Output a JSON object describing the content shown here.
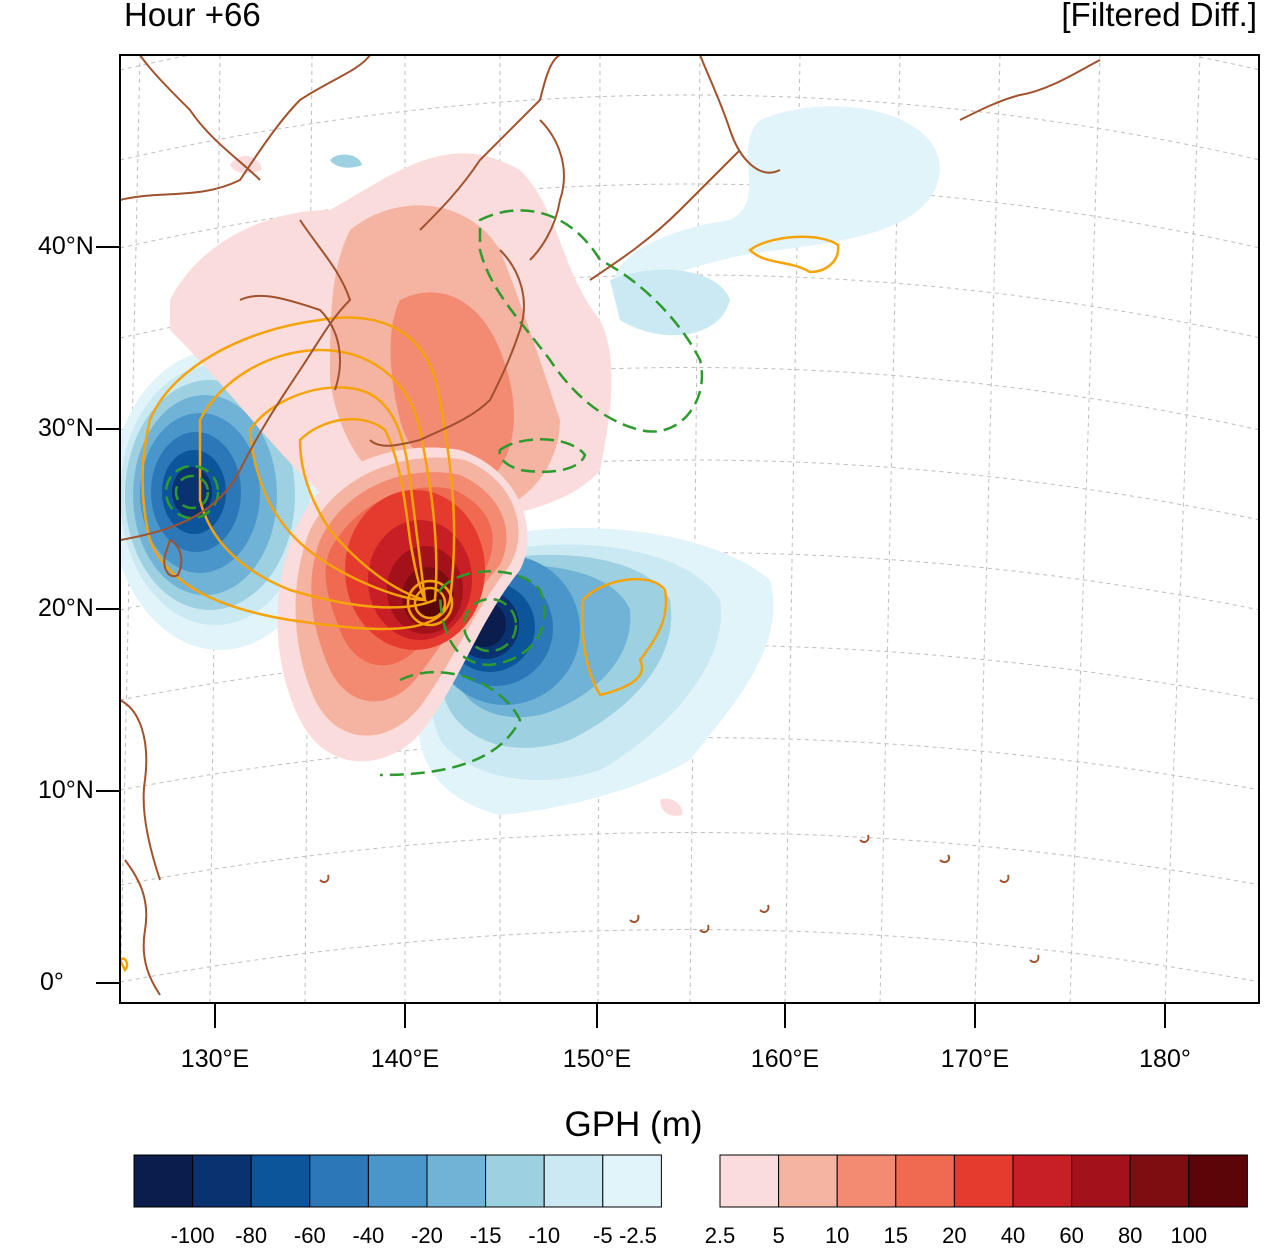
{
  "header": {
    "title_left": "Hour +66",
    "title_right": "[Filtered Diff.]"
  },
  "axes": {
    "lat_labels": [
      "40°N",
      "30°N",
      "20°N",
      "10°N",
      "0°"
    ],
    "lon_labels": [
      "130°E",
      "140°E",
      "150°E",
      "160°E",
      "170°E",
      "180°"
    ]
  },
  "colorbar": {
    "title": "GPH (m)",
    "negative_ticks": [
      "-100",
      "-80",
      "-60",
      "-40",
      "-20",
      "-15",
      "-10",
      "-5",
      "-2.5"
    ],
    "positive_ticks": [
      "2.5",
      "5",
      "10",
      "15",
      "20",
      "40",
      "60",
      "80",
      "100"
    ],
    "negative_colors": [
      "#0b1d4c",
      "#0a3170",
      "#0d559b",
      "#2b77b8",
      "#4a95c9",
      "#70b3d6",
      "#9dd0e0",
      "#cbe9f2",
      "#e0f4f9"
    ],
    "positive_colors": [
      "#fbdcdc",
      "#f5b3a2",
      "#f28b72",
      "#ef6a50",
      "#e53b2f",
      "#c81e25",
      "#a3121b",
      "#7e0d12",
      "#5c0508"
    ]
  },
  "colors": {
    "coastline": "#a0522d",
    "positive_contour": "#f5a30a",
    "negative_contour": "#2e9a2e",
    "grid": "#bdbdbd"
  }
}
